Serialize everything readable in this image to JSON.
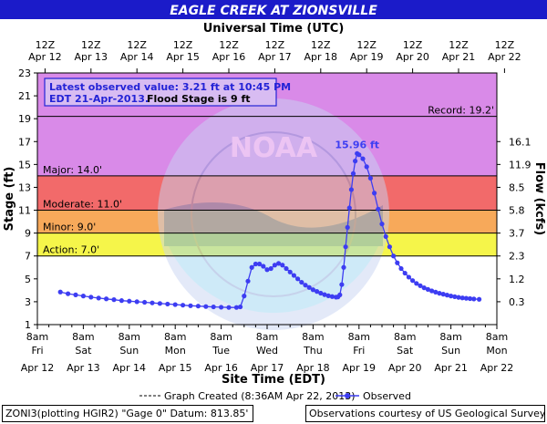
{
  "header": {
    "title": "EAGLE CREEK AT ZIONSVILLE",
    "subtitle": "Universal Time (UTC)"
  },
  "info_box": {
    "line1": "Latest observed value: 3.21 ft at 10:45 PM",
    "line2_date": "EDT 21-Apr-2013.",
    "line2_flood": "Flood Stage is 9 ft"
  },
  "thresholds": {
    "record": "Record: 19.2'",
    "major": "Major: 14.0'",
    "moderate": "Moderate: 11.0'",
    "minor": "Minor: 9.0'",
    "action": "Action: 7.0'"
  },
  "peak_label": "15.96 ft",
  "legend": {
    "created": "Graph Created (8:36AM Apr 22, 2013)",
    "observed": "Observed"
  },
  "footer": {
    "left": "ZONI3(plotting HGIR2) \"Gage 0\" Datum: 813.85'",
    "right": "Observations courtesy of US Geological Survey"
  },
  "colors": {
    "title_bg": "#1b1bc9",
    "record_zone": "#d98ae8",
    "major_zone": "#f26a6a",
    "moderate_zone": "#f7a95a",
    "minor_zone": "#f5f54a",
    "normal_zone": "#ffffff",
    "series": "#3d3df2",
    "info_text": "#2323d6"
  },
  "chart_data": {
    "type": "line",
    "title": "EAGLE CREEK AT ZIONSVILLE",
    "xlabel": "Site Time (EDT)",
    "x2label": "Universal Time (UTC)",
    "ylabel": "Stage (ft)",
    "y2label": "Flow (kcfs)",
    "ylim": [
      1,
      23
    ],
    "xlim": [
      "2013-04-12 08:00",
      "2013-04-22 08:00"
    ],
    "grid": false,
    "legend": "bottom",
    "y_ticks": [
      "1",
      "3",
      "5",
      "7",
      "9",
      "11",
      "13",
      "15",
      "17",
      "19",
      "21",
      "23"
    ],
    "y2_ticks": [
      {
        "stage": 3,
        "label": "0.3"
      },
      {
        "stage": 5,
        "label": "1.2"
      },
      {
        "stage": 7,
        "label": "2.3"
      },
      {
        "stage": 9,
        "label": "3.7"
      },
      {
        "stage": 11,
        "label": "5.8"
      },
      {
        "stage": 13,
        "label": "8.5"
      },
      {
        "stage": 15,
        "label": "11.9"
      },
      {
        "stage": 17,
        "label": "16.1"
      }
    ],
    "x_bottom_ticks": [
      {
        "time": "8am",
        "day": "Fri",
        "date": "Apr 12"
      },
      {
        "time": "8am",
        "day": "Sat",
        "date": "Apr 13"
      },
      {
        "time": "8am",
        "day": "Sun",
        "date": "Apr 14"
      },
      {
        "time": "8am",
        "day": "Mon",
        "date": "Apr 15"
      },
      {
        "time": "8am",
        "day": "Tue",
        "date": "Apr 16"
      },
      {
        "time": "8am",
        "day": "Wed",
        "date": "Apr 17"
      },
      {
        "time": "8am",
        "day": "Thu",
        "date": "Apr 18"
      },
      {
        "time": "8am",
        "day": "Fri",
        "date": "Apr 19"
      },
      {
        "time": "8am",
        "day": "Sat",
        "date": "Apr 20"
      },
      {
        "time": "8am",
        "day": "Sun",
        "date": "Apr 21"
      },
      {
        "time": "8am",
        "day": "Mon",
        "date": "Apr 22"
      }
    ],
    "x_top_ticks": [
      {
        "time": "12Z",
        "date": "Apr 12"
      },
      {
        "time": "12Z",
        "date": "Apr 13"
      },
      {
        "time": "12Z",
        "date": "Apr 14"
      },
      {
        "time": "12Z",
        "date": "Apr 15"
      },
      {
        "time": "12Z",
        "date": "Apr 16"
      },
      {
        "time": "12Z",
        "date": "Apr 17"
      },
      {
        "time": "12Z",
        "date": "Apr 18"
      },
      {
        "time": "12Z",
        "date": "Apr 19"
      },
      {
        "time": "12Z",
        "date": "Apr 20"
      },
      {
        "time": "12Z",
        "date": "Apr 21"
      },
      {
        "time": "12Z",
        "date": "Apr 22"
      }
    ],
    "flood_categories": [
      {
        "name": "Record",
        "stage": 19.2
      },
      {
        "name": "Major",
        "stage": 14.0
      },
      {
        "name": "Moderate",
        "stage": 11.0
      },
      {
        "name": "Minor",
        "stage": 9.0
      },
      {
        "name": "Action",
        "stage": 7.0
      }
    ],
    "peak": {
      "time": "2013-04-19 07:00",
      "stage": 15.96
    },
    "latest": {
      "time": "2013-04-21 22:45",
      "stage": 3.21
    },
    "series": [
      {
        "name": "Observed",
        "points": [
          [
            "2013-04-12 20:00",
            3.85
          ],
          [
            "2013-04-13 00:00",
            3.7
          ],
          [
            "2013-04-13 04:00",
            3.6
          ],
          [
            "2013-04-13 08:00",
            3.5
          ],
          [
            "2013-04-13 12:00",
            3.4
          ],
          [
            "2013-04-13 16:00",
            3.32
          ],
          [
            "2013-04-13 20:00",
            3.25
          ],
          [
            "2013-04-14 00:00",
            3.18
          ],
          [
            "2013-04-14 04:00",
            3.1
          ],
          [
            "2013-04-14 08:00",
            3.05
          ],
          [
            "2013-04-14 12:00",
            3.0
          ],
          [
            "2013-04-14 16:00",
            2.95
          ],
          [
            "2013-04-14 20:00",
            2.9
          ],
          [
            "2013-04-15 00:00",
            2.85
          ],
          [
            "2013-04-15 04:00",
            2.8
          ],
          [
            "2013-04-15 08:00",
            2.75
          ],
          [
            "2013-04-15 12:00",
            2.7
          ],
          [
            "2013-04-15 16:00",
            2.65
          ],
          [
            "2013-04-15 20:00",
            2.62
          ],
          [
            "2013-04-16 00:00",
            2.58
          ],
          [
            "2013-04-16 04:00",
            2.55
          ],
          [
            "2013-04-16 08:00",
            2.52
          ],
          [
            "2013-04-16 12:00",
            2.5
          ],
          [
            "2013-04-16 16:00",
            2.5
          ],
          [
            "2013-04-16 18:00",
            2.55
          ],
          [
            "2013-04-16 20:00",
            3.5
          ],
          [
            "2013-04-16 22:00",
            4.8
          ],
          [
            "2013-04-17 00:00",
            6.0
          ],
          [
            "2013-04-17 02:00",
            6.3
          ],
          [
            "2013-04-17 04:00",
            6.3
          ],
          [
            "2013-04-17 06:00",
            6.1
          ],
          [
            "2013-04-17 08:00",
            5.8
          ],
          [
            "2013-04-17 10:00",
            5.9
          ],
          [
            "2013-04-17 12:00",
            6.2
          ],
          [
            "2013-04-17 14:00",
            6.35
          ],
          [
            "2013-04-17 16:00",
            6.2
          ],
          [
            "2013-04-17 18:00",
            5.9
          ],
          [
            "2013-04-17 20:00",
            5.6
          ],
          [
            "2013-04-17 22:00",
            5.3
          ],
          [
            "2013-04-18 00:00",
            5.0
          ],
          [
            "2013-04-18 02:00",
            4.7
          ],
          [
            "2013-04-18 04:00",
            4.45
          ],
          [
            "2013-04-18 06:00",
            4.25
          ],
          [
            "2013-04-18 08:00",
            4.05
          ],
          [
            "2013-04-18 10:00",
            3.9
          ],
          [
            "2013-04-18 12:00",
            3.75
          ],
          [
            "2013-04-18 14:00",
            3.62
          ],
          [
            "2013-04-18 16:00",
            3.52
          ],
          [
            "2013-04-18 18:00",
            3.45
          ],
          [
            "2013-04-18 20:00",
            3.4
          ],
          [
            "2013-04-18 21:00",
            3.42
          ],
          [
            "2013-04-18 22:00",
            3.6
          ],
          [
            "2013-04-18 23:00",
            4.5
          ],
          [
            "2013-04-19 00:00",
            6.0
          ],
          [
            "2013-04-19 01:00",
            7.8
          ],
          [
            "2013-04-19 02:00",
            9.5
          ],
          [
            "2013-04-19 03:00",
            11.2
          ],
          [
            "2013-04-19 04:00",
            12.8
          ],
          [
            "2013-04-19 05:00",
            14.2
          ],
          [
            "2013-04-19 06:00",
            15.3
          ],
          [
            "2013-04-19 07:00",
            15.96
          ],
          [
            "2013-04-19 08:00",
            15.85
          ],
          [
            "2013-04-19 10:00",
            15.5
          ],
          [
            "2013-04-19 12:00",
            14.8
          ],
          [
            "2013-04-19 14:00",
            13.8
          ],
          [
            "2013-04-19 16:00",
            12.5
          ],
          [
            "2013-04-19 18:00",
            11.1
          ],
          [
            "2013-04-19 20:00",
            9.8
          ],
          [
            "2013-04-19 22:00",
            8.7
          ],
          [
            "2013-04-20 00:00",
            7.8
          ],
          [
            "2013-04-20 02:00",
            7.0
          ],
          [
            "2013-04-20 04:00",
            6.4
          ],
          [
            "2013-04-20 06:00",
            5.9
          ],
          [
            "2013-04-20 08:00",
            5.5
          ],
          [
            "2013-04-20 10:00",
            5.15
          ],
          [
            "2013-04-20 12:00",
            4.85
          ],
          [
            "2013-04-20 14:00",
            4.6
          ],
          [
            "2013-04-20 16:00",
            4.4
          ],
          [
            "2013-04-20 18:00",
            4.22
          ],
          [
            "2013-04-20 20:00",
            4.08
          ],
          [
            "2013-04-20 22:00",
            3.95
          ],
          [
            "2013-04-21 00:00",
            3.84
          ],
          [
            "2013-04-21 02:00",
            3.74
          ],
          [
            "2013-04-21 04:00",
            3.66
          ],
          [
            "2013-04-21 06:00",
            3.58
          ],
          [
            "2013-04-21 08:00",
            3.5
          ],
          [
            "2013-04-21 10:00",
            3.44
          ],
          [
            "2013-04-21 12:00",
            3.38
          ],
          [
            "2013-04-21 14:00",
            3.33
          ],
          [
            "2013-04-21 16:00",
            3.3
          ],
          [
            "2013-04-21 18:00",
            3.27
          ],
          [
            "2013-04-21 20:00",
            3.24
          ],
          [
            "2013-04-21 22:45",
            3.21
          ]
        ]
      }
    ]
  }
}
